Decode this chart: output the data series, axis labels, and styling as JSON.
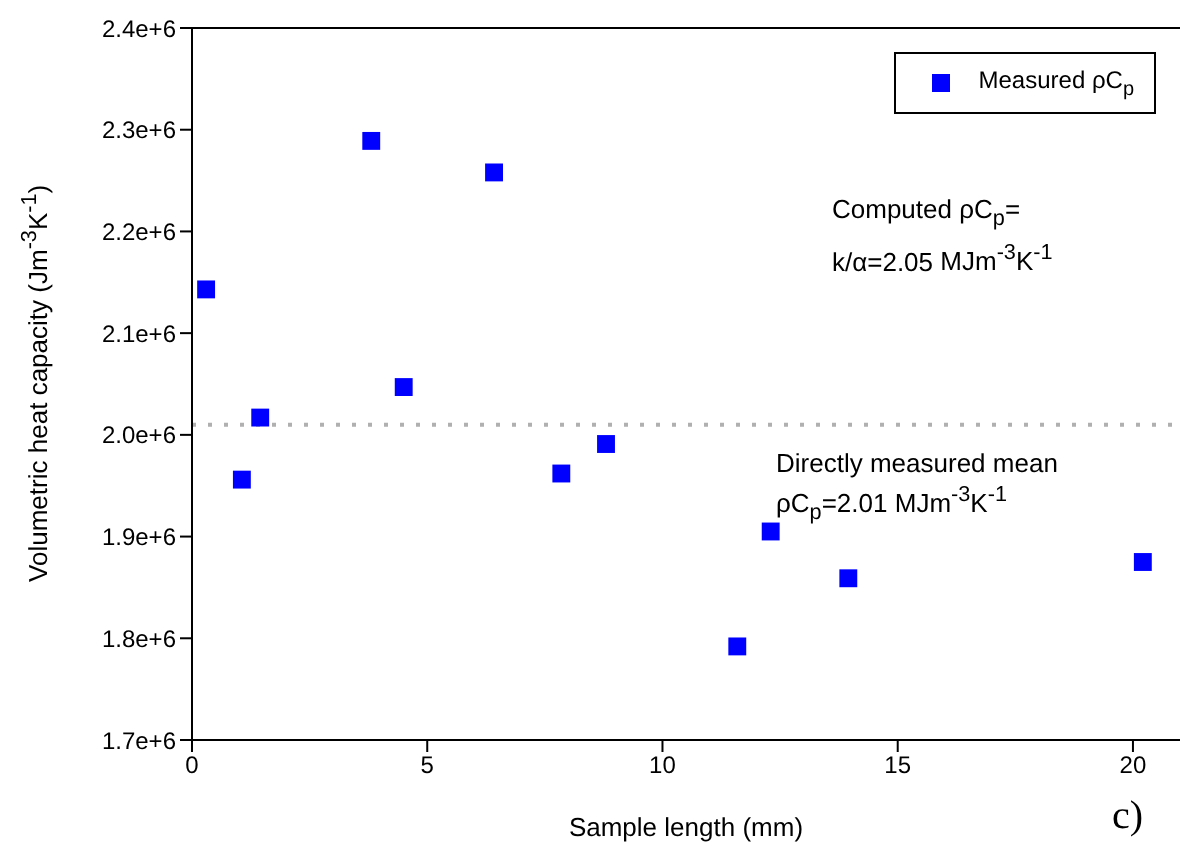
{
  "chart_data": {
    "type": "scatter",
    "xlabel": "Sample length (mm)",
    "ylabel": "Volumetric heat capacity (Jm$^{-3}$K$^{-1}$)",
    "x": [
      0.3,
      1.06,
      1.45,
      3.81,
      4.5,
      6.42,
      7.85,
      8.8,
      11.59,
      12.3,
      13.95,
      20.21
    ],
    "series": [
      {
        "name": "Measured ρC$_{p}$",
        "color": "#0000ff",
        "values": [
          2143000,
          1956000,
          2017000,
          2289000,
          2047000,
          2258000,
          1962000,
          1991000,
          1792000,
          1905000,
          1859000,
          1875000
        ]
      }
    ],
    "xlim": [
      0,
      21
    ],
    "xticks": [
      0,
      5,
      10,
      15,
      20
    ],
    "ylim": [
      1700000,
      2400000
    ],
    "yticks": [
      {
        "value": 1700000,
        "label": "1.7e+6"
      },
      {
        "value": 1800000,
        "label": "1.8e+6"
      },
      {
        "value": 1900000,
        "label": "1.9e+6"
      },
      {
        "value": 2000000,
        "label": "2.0e+6"
      },
      {
        "value": 2100000,
        "label": "2.1e+6"
      },
      {
        "value": 2200000,
        "label": "2.2e+6"
      },
      {
        "value": 2300000,
        "label": "2.3e+6"
      },
      {
        "value": 2400000,
        "label": "2.4e+6"
      }
    ],
    "ref_lines": [
      {
        "axis": "y",
        "value": 2010000,
        "color": "#b0b0b0",
        "line_style": "dotted"
      }
    ],
    "annotations": [
      "Computed ρC$_{p}$= k/α=2.05 MJm$^{-3}$K$^{-1}$",
      "c)",
      "Directly measured mean ρC$_{p}$=2.01 MJm$^{-3}$K$^{-1}$"
    ],
    "legend": "top right",
    "marker": "square",
    "grid": false
  }
}
